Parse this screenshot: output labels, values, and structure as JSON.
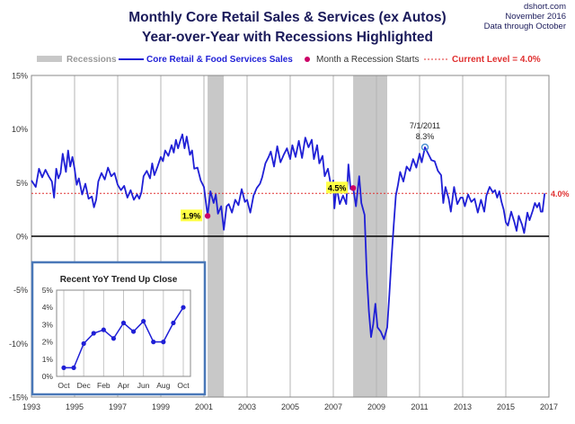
{
  "header": {
    "title_line1": "Monthly Core Retail Sales & Services (ex Autos)",
    "title_line2": "Year-over-Year with Recessions Highlighted",
    "source": "dshort.com",
    "date_line1": "November 2016",
    "date_line2": "Data through October"
  },
  "legend": {
    "recessions": "Recessions",
    "series": "Core Retail & Food Services Sales",
    "recession_start": "Month a Recession Starts",
    "current_level": "Current Level = 4.0%"
  },
  "colors": {
    "series": "#1f1fd6",
    "recession_band": "#c8c8c8",
    "recession_start": "#cc0066",
    "current_level": "#e03030",
    "title": "#1a1a5a",
    "inset_border": "#4a78b8",
    "callout_bg": "#ffff44"
  },
  "chart_data": [
    {
      "type": "line",
      "title": "Monthly Core Retail Sales & Services (ex Autos) Year-over-Year with Recessions Highlighted",
      "series_name": "Core Retail & Food Services Sales",
      "x_range": [
        1993.0,
        2017.0
      ],
      "ylim": [
        -15,
        15
      ],
      "yticks": [
        15,
        10,
        5,
        0,
        -5,
        -10,
        -15
      ],
      "ytick_labels": [
        "15%",
        "10%",
        "5%",
        "0%",
        "-5%",
        "-10%",
        "-15%"
      ],
      "xticks": [
        1993,
        1995,
        1997,
        1999,
        2001,
        2003,
        2005,
        2007,
        2009,
        2011,
        2013,
        2015,
        2017
      ],
      "xtick_labels": [
        "1993",
        "1995",
        "1997",
        "1999",
        "2001",
        "2003",
        "2005",
        "2007",
        "2009",
        "2011",
        "2013",
        "2015",
        "2017"
      ],
      "grid": "vertical",
      "recessions": [
        [
          2001.17,
          2001.92
        ],
        [
          2007.92,
          2009.5
        ]
      ],
      "recession_starts": [
        {
          "x": 2001.17,
          "y": 1.9,
          "label": "1.9%"
        },
        {
          "x": 2007.92,
          "y": 4.5,
          "label": "4.5%"
        }
      ],
      "current_level": 4.0,
      "current_level_label": "4.0%",
      "peak_annotation": {
        "x": 2011.25,
        "y": 8.3,
        "date_label": "7/1/2011",
        "value_label": "8.3%"
      },
      "points": [
        [
          1993.0,
          5.2
        ],
        [
          1993.2,
          4.6
        ],
        [
          1993.35,
          6.3
        ],
        [
          1993.5,
          5.5
        ],
        [
          1993.65,
          6.2
        ],
        [
          1993.8,
          5.6
        ],
        [
          1993.95,
          5.1
        ],
        [
          1994.05,
          3.6
        ],
        [
          1994.15,
          6.3
        ],
        [
          1994.25,
          5.4
        ],
        [
          1994.35,
          5.9
        ],
        [
          1994.45,
          7.7
        ],
        [
          1994.6,
          6.0
        ],
        [
          1994.7,
          8.0
        ],
        [
          1994.8,
          6.5
        ],
        [
          1994.9,
          7.4
        ],
        [
          1995.0,
          6.3
        ],
        [
          1995.1,
          4.8
        ],
        [
          1995.2,
          5.4
        ],
        [
          1995.35,
          3.9
        ],
        [
          1995.5,
          4.9
        ],
        [
          1995.65,
          3.5
        ],
        [
          1995.8,
          3.7
        ],
        [
          1995.9,
          2.7
        ],
        [
          1996.0,
          3.4
        ],
        [
          1996.1,
          5.1
        ],
        [
          1996.25,
          5.9
        ],
        [
          1996.4,
          5.3
        ],
        [
          1996.55,
          6.4
        ],
        [
          1996.7,
          5.6
        ],
        [
          1996.85,
          5.9
        ],
        [
          1997.0,
          4.8
        ],
        [
          1997.15,
          4.3
        ],
        [
          1997.3,
          4.7
        ],
        [
          1997.45,
          3.6
        ],
        [
          1997.6,
          4.3
        ],
        [
          1997.75,
          3.4
        ],
        [
          1997.9,
          3.9
        ],
        [
          1998.0,
          3.5
        ],
        [
          1998.1,
          4.1
        ],
        [
          1998.2,
          5.6
        ],
        [
          1998.35,
          6.1
        ],
        [
          1998.5,
          5.4
        ],
        [
          1998.6,
          6.8
        ],
        [
          1998.7,
          5.7
        ],
        [
          1998.85,
          6.5
        ],
        [
          1999.0,
          7.4
        ],
        [
          1999.1,
          7.0
        ],
        [
          1999.2,
          8.0
        ],
        [
          1999.35,
          7.5
        ],
        [
          1999.5,
          8.5
        ],
        [
          1999.6,
          7.8
        ],
        [
          1999.7,
          9.0
        ],
        [
          1999.8,
          8.2
        ],
        [
          1999.9,
          8.9
        ],
        [
          2000.0,
          9.5
        ],
        [
          2000.1,
          8.2
        ],
        [
          2000.2,
          9.3
        ],
        [
          2000.35,
          7.6
        ],
        [
          2000.45,
          8.0
        ],
        [
          2000.55,
          6.3
        ],
        [
          2000.7,
          6.4
        ],
        [
          2000.85,
          5.2
        ],
        [
          2001.0,
          4.6
        ],
        [
          2001.17,
          1.9
        ],
        [
          2001.3,
          4.2
        ],
        [
          2001.45,
          3.1
        ],
        [
          2001.55,
          3.9
        ],
        [
          2001.65,
          2.1
        ],
        [
          2001.8,
          2.8
        ],
        [
          2001.92,
          0.6
        ],
        [
          2002.05,
          2.8
        ],
        [
          2002.15,
          3.0
        ],
        [
          2002.3,
          2.2
        ],
        [
          2002.45,
          3.4
        ],
        [
          2002.6,
          2.9
        ],
        [
          2002.75,
          4.4
        ],
        [
          2002.9,
          3.2
        ],
        [
          2003.0,
          3.4
        ],
        [
          2003.15,
          2.2
        ],
        [
          2003.3,
          3.8
        ],
        [
          2003.45,
          4.5
        ],
        [
          2003.6,
          4.9
        ],
        [
          2003.7,
          5.5
        ],
        [
          2003.85,
          6.8
        ],
        [
          2004.0,
          7.4
        ],
        [
          2004.1,
          7.9
        ],
        [
          2004.25,
          6.5
        ],
        [
          2004.4,
          8.4
        ],
        [
          2004.55,
          6.9
        ],
        [
          2004.7,
          7.6
        ],
        [
          2004.85,
          8.2
        ],
        [
          2005.0,
          7.2
        ],
        [
          2005.1,
          8.5
        ],
        [
          2005.25,
          7.4
        ],
        [
          2005.4,
          8.9
        ],
        [
          2005.55,
          7.3
        ],
        [
          2005.7,
          9.2
        ],
        [
          2005.85,
          8.3
        ],
        [
          2006.0,
          9.0
        ],
        [
          2006.1,
          7.2
        ],
        [
          2006.25,
          8.5
        ],
        [
          2006.35,
          6.8
        ],
        [
          2006.5,
          7.5
        ],
        [
          2006.6,
          5.6
        ],
        [
          2006.75,
          6.3
        ],
        [
          2006.9,
          4.6
        ],
        [
          2007.0,
          5.2
        ],
        [
          2007.05,
          2.6
        ],
        [
          2007.15,
          4.6
        ],
        [
          2007.3,
          3.0
        ],
        [
          2007.45,
          3.8
        ],
        [
          2007.6,
          3.0
        ],
        [
          2007.7,
          6.7
        ],
        [
          2007.8,
          4.4
        ],
        [
          2007.92,
          4.5
        ],
        [
          2008.05,
          2.8
        ],
        [
          2008.2,
          5.6
        ],
        [
          2008.3,
          3.1
        ],
        [
          2008.45,
          2.0
        ],
        [
          2008.55,
          -3.5
        ],
        [
          2008.65,
          -7.0
        ],
        [
          2008.75,
          -9.4
        ],
        [
          2008.85,
          -8.2
        ],
        [
          2008.95,
          -6.3
        ],
        [
          2009.05,
          -8.5
        ],
        [
          2009.2,
          -8.9
        ],
        [
          2009.35,
          -9.6
        ],
        [
          2009.5,
          -8.5
        ],
        [
          2009.6,
          -5.4
        ],
        [
          2009.7,
          -2.0
        ],
        [
          2009.8,
          1.0
        ],
        [
          2009.9,
          3.8
        ],
        [
          2010.0,
          4.8
        ],
        [
          2010.1,
          6.0
        ],
        [
          2010.25,
          5.1
        ],
        [
          2010.4,
          6.5
        ],
        [
          2010.55,
          6.1
        ],
        [
          2010.7,
          7.2
        ],
        [
          2010.85,
          6.4
        ],
        [
          2011.0,
          7.7
        ],
        [
          2011.1,
          6.9
        ],
        [
          2011.25,
          8.3
        ],
        [
          2011.4,
          7.7
        ],
        [
          2011.55,
          7.1
        ],
        [
          2011.7,
          7.0
        ],
        [
          2011.85,
          6.1
        ],
        [
          2012.0,
          5.7
        ],
        [
          2012.1,
          3.1
        ],
        [
          2012.2,
          4.6
        ],
        [
          2012.35,
          3.5
        ],
        [
          2012.45,
          2.3
        ],
        [
          2012.6,
          4.6
        ],
        [
          2012.75,
          3.0
        ],
        [
          2012.9,
          3.6
        ],
        [
          2013.0,
          3.6
        ],
        [
          2013.1,
          2.8
        ],
        [
          2013.25,
          3.9
        ],
        [
          2013.4,
          3.2
        ],
        [
          2013.55,
          3.5
        ],
        [
          2013.7,
          2.2
        ],
        [
          2013.85,
          3.4
        ],
        [
          2014.0,
          2.3
        ],
        [
          2014.1,
          3.8
        ],
        [
          2014.25,
          4.6
        ],
        [
          2014.4,
          4.1
        ],
        [
          2014.5,
          4.3
        ],
        [
          2014.6,
          3.6
        ],
        [
          2014.7,
          4.2
        ],
        [
          2014.8,
          3.2
        ],
        [
          2014.9,
          2.5
        ],
        [
          2015.0,
          1.3
        ],
        [
          2015.1,
          1.0
        ],
        [
          2015.25,
          2.3
        ],
        [
          2015.4,
          1.3
        ],
        [
          2015.5,
          0.5
        ],
        [
          2015.6,
          1.9
        ],
        [
          2015.75,
          1.1
        ],
        [
          2015.85,
          0.3
        ],
        [
          2016.0,
          2.2
        ],
        [
          2016.1,
          1.5
        ],
        [
          2016.25,
          2.4
        ],
        [
          2016.35,
          3.1
        ],
        [
          2016.45,
          2.7
        ],
        [
          2016.55,
          3.1
        ],
        [
          2016.62,
          2.3
        ],
        [
          2016.7,
          2.3
        ],
        [
          2016.8,
          4.0
        ]
      ]
    },
    {
      "type": "line",
      "title": "Recent  YoY Trend Up Close",
      "categories": [
        "Oct",
        "Nov",
        "Dec",
        "Jan",
        "Feb",
        "Mar",
        "Apr",
        "May",
        "Jun",
        "Jul",
        "Aug",
        "Sep",
        "Oct"
      ],
      "category_labels_shown": [
        "Oct",
        "",
        "Dec",
        "",
        "Feb",
        "",
        "Apr",
        "",
        "Jun",
        "",
        "Aug",
        "",
        "Oct"
      ],
      "values": [
        0.5,
        0.5,
        1.9,
        2.5,
        2.7,
        2.2,
        3.1,
        2.6,
        3.2,
        2.0,
        2.0,
        3.1,
        4.0
      ],
      "ylim": [
        0,
        5
      ],
      "yticks": [
        0,
        1,
        2,
        3,
        4,
        5
      ],
      "ytick_labels": [
        "0%",
        "1%",
        "2%",
        "3%",
        "4%",
        "5%"
      ],
      "grid": "vertical"
    }
  ]
}
